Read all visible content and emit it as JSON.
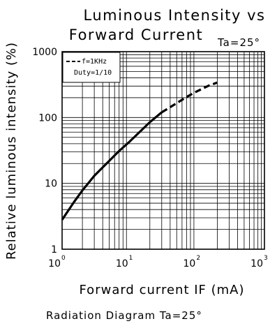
{
  "title_line1": "Luminous Intensity vs",
  "title_line2": "Forward Current",
  "condition": "Ta=25°",
  "footer": "Radiation Diagram  Ta=25°",
  "chart_data": {
    "type": "line",
    "xlabel": "Forward current IF (mA)",
    "ylabel": "Relative luminous intensity (%)",
    "x_scale": "log",
    "y_scale": "log",
    "xlim": [
      1,
      1000
    ],
    "ylim": [
      1,
      1000
    ],
    "x_ticks": [
      {
        "base": "10",
        "exp": "0"
      },
      {
        "base": "10",
        "exp": "1"
      },
      {
        "base": "10",
        "exp": "2"
      },
      {
        "base": "10",
        "exp": "3"
      }
    ],
    "y_ticks": [
      "1",
      "10",
      "100",
      "1000"
    ],
    "grid": true,
    "legend_position": "top-left",
    "legend": {
      "line1": "f=1KHz",
      "line2": "Duty=1/10"
    },
    "series": [
      {
        "style": "solid",
        "x": [
          1,
          1.5,
          2,
          3,
          5,
          7,
          10,
          15,
          20,
          30
        ],
        "y": [
          2.8,
          5.2,
          7.8,
          13,
          22,
          31,
          43,
          64,
          85,
          120
        ]
      },
      {
        "style": "dashed",
        "x": [
          30,
          50,
          70,
          100,
          150,
          200
        ],
        "y": [
          120,
          165,
          205,
          250,
          305,
          340
        ]
      }
    ]
  }
}
